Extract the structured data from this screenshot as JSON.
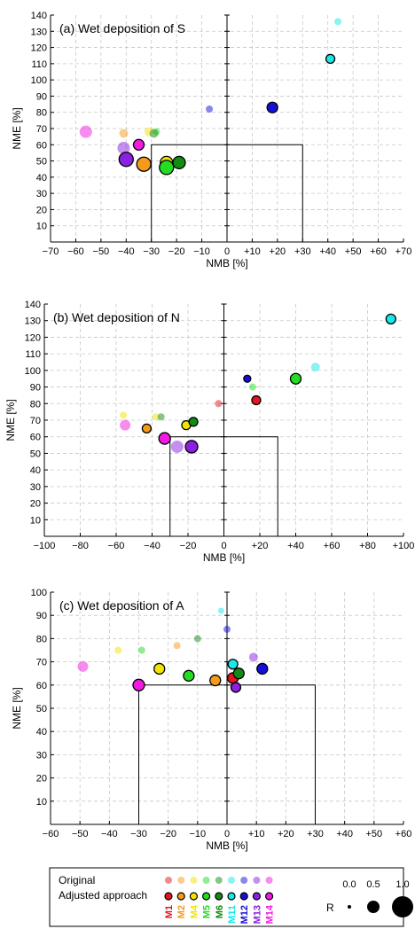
{
  "chart_data": [
    {
      "type": "scatter",
      "title": "(a) Wet deposition of S",
      "xlabel": "NMB [%]",
      "ylabel": "NME [%]",
      "xlim": [
        -70,
        70
      ],
      "ylim": [
        0,
        140
      ],
      "xticks": [
        "−70",
        "−60",
        "−50",
        "−40",
        "−30",
        "−20",
        "−10",
        "0",
        "+10",
        "+20",
        "+30",
        "+40",
        "+50",
        "+60",
        "+70"
      ],
      "yticks": [
        "10",
        "20",
        "30",
        "40",
        "50",
        "60",
        "70",
        "80",
        "90",
        "100",
        "110",
        "120",
        "130",
        "140"
      ],
      "ytick_values": [
        10,
        20,
        30,
        40,
        50,
        60,
        70,
        80,
        90,
        100,
        110,
        120,
        130,
        140
      ],
      "target_box": {
        "nmb": [
          -30,
          30
        ],
        "nme_max": 60
      },
      "grid": true,
      "series": [
        {
          "name": "Original",
          "points": [
            {
              "model": "M2",
              "x": -41,
              "y": 67,
              "r": 0.3
            },
            {
              "model": "M4",
              "x": -31,
              "y": 68,
              "r": 0.3
            },
            {
              "model": "M5",
              "x": -28,
              "y": 68,
              "r": 0.2
            },
            {
              "model": "M6",
              "x": -29,
              "y": 67,
              "r": 0.3
            },
            {
              "model": "M11",
              "x": 44,
              "y": 136,
              "r": 0.2
            },
            {
              "model": "M12",
              "x": -7,
              "y": 82,
              "r": 0.2
            },
            {
              "model": "M13",
              "x": -41,
              "y": 58,
              "r": 0.5
            },
            {
              "model": "M14",
              "x": -56,
              "y": 68,
              "r": 0.5
            }
          ]
        },
        {
          "name": "Adjusted approach",
          "points": [
            {
              "model": "M2",
              "x": -33,
              "y": 48,
              "r": 0.6
            },
            {
              "model": "M4",
              "x": -24,
              "y": 49,
              "r": 0.5
            },
            {
              "model": "M5",
              "x": -24,
              "y": 46,
              "r": 0.6
            },
            {
              "model": "M6",
              "x": -19,
              "y": 49,
              "r": 0.5
            },
            {
              "model": "M11",
              "x": 41,
              "y": 113,
              "r": 0.3
            },
            {
              "model": "M12",
              "x": 18,
              "y": 83,
              "r": 0.4
            },
            {
              "model": "M13",
              "x": -40,
              "y": 51,
              "r": 0.6
            },
            {
              "model": "M14",
              "x": -35,
              "y": 60,
              "r": 0.4
            }
          ]
        }
      ]
    },
    {
      "type": "scatter",
      "title": "(b) Wet deposition of N",
      "xlabel": "NMB [%]",
      "ylabel": "NME [%]",
      "xlim": [
        -100,
        100
      ],
      "ylim": [
        0,
        140
      ],
      "xticks": [
        "−100",
        "−80",
        "−60",
        "−40",
        "−20",
        "0",
        "+20",
        "+40",
        "+60",
        "+80",
        "+100"
      ],
      "yticks": [
        "10",
        "20",
        "30",
        "40",
        "50",
        "60",
        "70",
        "80",
        "90",
        "100",
        "110",
        "120",
        "130",
        "140"
      ],
      "ytick_values": [
        10,
        20,
        30,
        40,
        50,
        60,
        70,
        80,
        90,
        100,
        110,
        120,
        130,
        140
      ],
      "target_box": {
        "nmb": [
          -30,
          30
        ],
        "nme_max": 60
      },
      "grid": true,
      "series": [
        {
          "name": "Original",
          "points": [
            {
              "model": "M1",
              "x": -3,
              "y": 80,
              "r": 0.2
            },
            {
              "model": "M4",
              "x": -56,
              "y": 73,
              "r": 0.2
            },
            {
              "model": "M4",
              "x": -38,
              "y": 72,
              "r": 0.2
            },
            {
              "model": "M6",
              "x": -35,
              "y": 72,
              "r": 0.2
            },
            {
              "model": "M5",
              "x": 16,
              "y": 90,
              "r": 0.2
            },
            {
              "model": "M11",
              "x": 51,
              "y": 102,
              "r": 0.3
            },
            {
              "model": "M12",
              "x": -18,
              "y": 69,
              "r": 0.2
            },
            {
              "model": "M13",
              "x": -26,
              "y": 54,
              "r": 0.5
            },
            {
              "model": "M14",
              "x": -55,
              "y": 67,
              "r": 0.4
            }
          ]
        },
        {
          "name": "Adjusted approach",
          "points": [
            {
              "model": "M1",
              "x": 18,
              "y": 82,
              "r": 0.3
            },
            {
              "model": "M2",
              "x": -43,
              "y": 65,
              "r": 0.3
            },
            {
              "model": "M4",
              "x": -21,
              "y": 67,
              "r": 0.3
            },
            {
              "model": "M5",
              "x": 40,
              "y": 95,
              "r": 0.4
            },
            {
              "model": "M6",
              "x": -17,
              "y": 69,
              "r": 0.3
            },
            {
              "model": "M11",
              "x": 93,
              "y": 131,
              "r": 0.35
            },
            {
              "model": "M12",
              "x": 13,
              "y": 95,
              "r": 0.2
            },
            {
              "model": "M13",
              "x": -18,
              "y": 54,
              "r": 0.5
            },
            {
              "model": "M14",
              "x": -33,
              "y": 59,
              "r": 0.45
            }
          ]
        }
      ]
    },
    {
      "type": "scatter",
      "title": "(c) Wet deposition of A",
      "xlabel": "NMB [%]",
      "ylabel": "NME [%]",
      "xlim": [
        -60,
        60
      ],
      "ylim": [
        0,
        100
      ],
      "xticks": [
        "−60",
        "−50",
        "−40",
        "−30",
        "−20",
        "−10",
        "0",
        "+10",
        "+20",
        "+30",
        "+40",
        "+50",
        "+60"
      ],
      "yticks": [
        "10",
        "20",
        "30",
        "40",
        "50",
        "60",
        "70",
        "80",
        "90",
        "100"
      ],
      "ytick_values": [
        10,
        20,
        30,
        40,
        50,
        60,
        70,
        80,
        90,
        100
      ],
      "target_box": {
        "nmb": [
          -30,
          30
        ],
        "nme_max": 60
      },
      "grid": true,
      "series": [
        {
          "name": "Original",
          "points": [
            {
              "model": "M4",
              "x": -37,
              "y": 75,
              "r": 0.2
            },
            {
              "model": "M5",
              "x": -29,
              "y": 75,
              "r": 0.2
            },
            {
              "model": "M2",
              "x": -17,
              "y": 77,
              "r": 0.2
            },
            {
              "model": "M6",
              "x": -10,
              "y": 80,
              "r": 0.2
            },
            {
              "model": "M11",
              "x": -2,
              "y": 92,
              "r": 0.15
            },
            {
              "model": "M12",
              "x": 0,
              "y": 84,
              "r": 0.2
            },
            {
              "model": "M13",
              "x": 9,
              "y": 72,
              "r": 0.3
            },
            {
              "model": "M14",
              "x": -49,
              "y": 68,
              "r": 0.4
            }
          ]
        },
        {
          "name": "Adjusted approach",
          "points": [
            {
              "model": "M1",
              "x": 2,
              "y": 63,
              "r": 0.4
            },
            {
              "model": "M2",
              "x": -4,
              "y": 62,
              "r": 0.4
            },
            {
              "model": "M4",
              "x": -23,
              "y": 67,
              "r": 0.4
            },
            {
              "model": "M5",
              "x": -13,
              "y": 64,
              "r": 0.4
            },
            {
              "model": "M6",
              "x": 4,
              "y": 65,
              "r": 0.4
            },
            {
              "model": "M11",
              "x": 2,
              "y": 69,
              "r": 0.35
            },
            {
              "model": "M12",
              "x": 12,
              "y": 67,
              "r": 0.4
            },
            {
              "model": "M13",
              "x": 3,
              "y": 59,
              "r": 0.35
            },
            {
              "model": "M14",
              "x": -30,
              "y": 60,
              "r": 0.45
            }
          ]
        }
      ]
    }
  ],
  "legend": {
    "original_label": "Original",
    "adjusted_label": "Adjusted approach",
    "models": [
      {
        "name": "M1",
        "color": "#e8141c"
      },
      {
        "name": "M2",
        "color": "#f59a1b"
      },
      {
        "name": "M4",
        "color": "#f2e400"
      },
      {
        "name": "M5",
        "color": "#22dd22"
      },
      {
        "name": "M6",
        "color": "#138a13"
      },
      {
        "name": "M11",
        "color": "#18e8e8"
      },
      {
        "name": "M12",
        "color": "#1410d8"
      },
      {
        "name": "M13",
        "color": "#8a20e0"
      },
      {
        "name": "M14",
        "color": "#f01ae0"
      }
    ],
    "r_label": "R",
    "r_scale": [
      {
        "label": "0.0",
        "value": 0.0
      },
      {
        "label": "0.5",
        "value": 0.5
      },
      {
        "label": "1.0",
        "value": 1.0
      }
    ]
  }
}
